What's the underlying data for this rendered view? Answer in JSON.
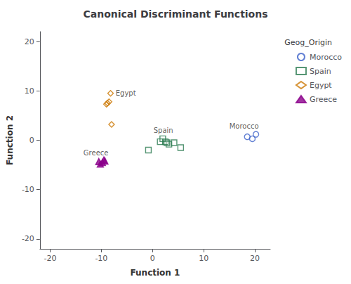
{
  "chart_data": {
    "type": "scatter",
    "title": "Canonical Discriminant Functions",
    "xlabel": "Function 1",
    "ylabel": "Function 2",
    "xlim": [
      -22,
      23
    ],
    "ylim": [
      -22,
      22
    ],
    "xticks": [
      -20,
      -10,
      0,
      10,
      20
    ],
    "yticks": [
      -20,
      -10,
      0,
      10,
      20
    ],
    "grid": false,
    "legend": "right",
    "legend_title": "Geog_Origin",
    "series": [
      {
        "name": "Morocco",
        "color": "#3a5fc8",
        "marker": "open_circle",
        "x": [
          18.5,
          19.5,
          20.2
        ],
        "values": [
          0.7,
          0.3,
          1.2
        ]
      },
      {
        "name": "Spain",
        "color": "#2a7a50",
        "marker": "open_square",
        "x": [
          -0.8,
          1.5,
          2.0,
          2.5,
          2.8,
          3.2,
          4.2,
          5.5
        ],
        "values": [
          -2.0,
          -0.3,
          0.3,
          -0.3,
          -0.5,
          -0.8,
          -0.5,
          -1.5
        ]
      },
      {
        "name": "Egypt",
        "color": "#cc7700",
        "marker": "open_diamond",
        "x": [
          -8.2,
          -8.5,
          -8.8,
          -9.0,
          -8.0
        ],
        "values": [
          9.5,
          7.8,
          7.5,
          7.3,
          3.2
        ]
      },
      {
        "name": "Greece",
        "color": "#8b008b",
        "marker": "triangle",
        "x": [
          -9.5,
          -9.8,
          -10.2,
          -10.5,
          -9.3
        ],
        "values": [
          -4.0,
          -4.5,
          -4.8,
          -4.3,
          -4.2
        ]
      }
    ],
    "annotations": [
      {
        "text": "Morocco",
        "x": 15.0,
        "y": 2.2
      },
      {
        "text": "Spain",
        "x": 0.2,
        "y": 1.3
      },
      {
        "text": "Egypt",
        "x": -7.2,
        "y": 8.8
      },
      {
        "text": "Greece",
        "x": -13.5,
        "y": -3.3
      }
    ]
  }
}
